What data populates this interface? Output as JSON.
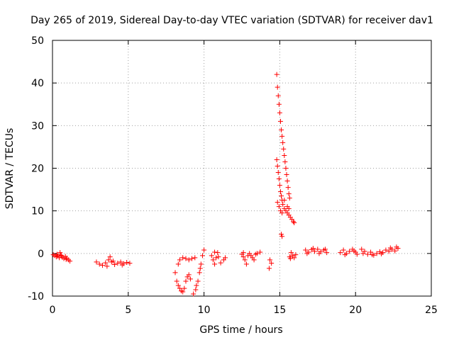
{
  "chart_data": {
    "type": "scatter",
    "title": "Day 265 of 2019, Sidereal Day-to-day VTEC variation (SDTVAR) for receiver dav1",
    "xlabel": "GPS time / hours",
    "ylabel": "SDTVAR / TECUs",
    "xlim": [
      0,
      25
    ],
    "ylim": [
      -10,
      50
    ],
    "xticks": [
      0,
      5,
      10,
      15,
      20,
      25
    ],
    "yticks": [
      -10,
      0,
      10,
      20,
      30,
      40,
      50
    ],
    "grid": true,
    "marker": "+",
    "color": "#ff0000",
    "series": [
      {
        "name": "SDTVAR",
        "points": [
          [
            0.05,
            -0.3
          ],
          [
            0.15,
            -0.5
          ],
          [
            0.25,
            -0.8
          ],
          [
            0.35,
            -0.6
          ],
          [
            0.45,
            -1.0
          ],
          [
            0.55,
            -0.4
          ],
          [
            0.65,
            -0.9
          ],
          [
            0.75,
            -1.2
          ],
          [
            0.85,
            -0.7
          ],
          [
            0.95,
            -1.1
          ],
          [
            1.05,
            -1.5
          ],
          [
            1.15,
            -1.8
          ],
          [
            0.3,
            -0.2
          ],
          [
            0.6,
            -0.5
          ],
          [
            0.9,
            -1.4
          ],
          [
            0.5,
            0.2
          ],
          [
            2.9,
            -2.0
          ],
          [
            3.1,
            -2.5
          ],
          [
            3.3,
            -2.8
          ],
          [
            3.5,
            -2.2
          ],
          [
            3.7,
            -1.5
          ],
          [
            3.8,
            -0.8
          ],
          [
            3.9,
            -2.0
          ],
          [
            4.1,
            -2.6
          ],
          [
            4.3,
            -2.3
          ],
          [
            4.5,
            -2.0
          ],
          [
            4.7,
            -2.4
          ],
          [
            4.9,
            -2.1
          ],
          [
            5.1,
            -2.3
          ],
          [
            3.6,
            -3.0
          ],
          [
            4.0,
            -1.8
          ],
          [
            4.6,
            -2.7
          ],
          [
            8.1,
            -4.5
          ],
          [
            8.2,
            -6.5
          ],
          [
            8.3,
            -7.5
          ],
          [
            8.4,
            -8.2
          ],
          [
            8.5,
            -8.8
          ],
          [
            8.6,
            -9.0
          ],
          [
            8.7,
            -8.2
          ],
          [
            8.8,
            -6.5
          ],
          [
            8.9,
            -5.5
          ],
          [
            9.0,
            -5.0
          ],
          [
            9.1,
            -6.0
          ],
          [
            8.3,
            -2.5
          ],
          [
            8.4,
            -1.5
          ],
          [
            8.6,
            -1.0
          ],
          [
            8.8,
            -1.2
          ],
          [
            9.0,
            -1.5
          ],
          [
            9.2,
            -1.2
          ],
          [
            9.4,
            -1.0
          ],
          [
            9.3,
            -9.5
          ],
          [
            9.45,
            -8.5
          ],
          [
            9.6,
            -6.5
          ],
          [
            9.7,
            -4.5
          ],
          [
            9.8,
            -2.5
          ],
          [
            9.9,
            -0.5
          ],
          [
            10.0,
            0.8
          ],
          [
            9.5,
            -7.5
          ],
          [
            9.75,
            -3.5
          ],
          [
            10.5,
            -0.5
          ],
          [
            10.6,
            -1.5
          ],
          [
            10.7,
            -2.5
          ],
          [
            10.8,
            -1.0
          ],
          [
            10.9,
            0.2
          ],
          [
            10.95,
            -0.8
          ],
          [
            11.1,
            -2.2
          ],
          [
            11.3,
            -1.5
          ],
          [
            11.4,
            -1.0
          ],
          [
            10.7,
            0.3
          ],
          [
            12.5,
            -0.2
          ],
          [
            12.6,
            -0.8
          ],
          [
            12.7,
            -1.5
          ],
          [
            12.8,
            -2.5
          ],
          [
            12.9,
            -0.5
          ],
          [
            13.0,
            0.0
          ],
          [
            13.1,
            -0.5
          ],
          [
            13.2,
            -1.0
          ],
          [
            13.3,
            -1.5
          ],
          [
            13.5,
            0.0
          ],
          [
            13.7,
            0.3
          ],
          [
            12.6,
            0.2
          ],
          [
            13.4,
            -0.2
          ],
          [
            14.3,
            -3.5
          ],
          [
            14.45,
            -2.3
          ],
          [
            14.35,
            -1.5
          ],
          [
            14.8,
            42.0
          ],
          [
            14.85,
            39.0
          ],
          [
            14.9,
            37.0
          ],
          [
            14.95,
            35.0
          ],
          [
            15.0,
            33.0
          ],
          [
            15.05,
            31.0
          ],
          [
            15.1,
            29.0
          ],
          [
            15.15,
            27.5
          ],
          [
            15.2,
            26.0
          ],
          [
            15.25,
            24.5
          ],
          [
            15.3,
            23.0
          ],
          [
            15.35,
            21.5
          ],
          [
            15.4,
            20.0
          ],
          [
            15.45,
            18.5
          ],
          [
            15.5,
            17.0
          ],
          [
            15.55,
            15.5
          ],
          [
            15.6,
            14.0
          ],
          [
            15.65,
            13.0
          ],
          [
            14.8,
            22.0
          ],
          [
            14.85,
            20.5
          ],
          [
            14.9,
            19.0
          ],
          [
            14.95,
            17.5
          ],
          [
            15.0,
            16.0
          ],
          [
            15.05,
            14.5
          ],
          [
            15.1,
            13.5
          ],
          [
            15.15,
            12.5
          ],
          [
            15.2,
            11.5
          ],
          [
            15.3,
            10.5
          ],
          [
            15.4,
            10.0
          ],
          [
            15.5,
            9.5
          ],
          [
            15.6,
            9.0
          ],
          [
            15.7,
            8.5
          ],
          [
            15.8,
            8.0
          ],
          [
            15.9,
            7.5
          ],
          [
            15.95,
            7.2
          ],
          [
            14.85,
            12.0
          ],
          [
            14.95,
            11.0
          ],
          [
            15.05,
            10.0
          ],
          [
            15.15,
            9.5
          ],
          [
            15.1,
            4.5
          ],
          [
            15.15,
            4.0
          ],
          [
            15.3,
            12.5
          ],
          [
            15.5,
            11.0
          ],
          [
            15.6,
            10.5
          ],
          [
            15.65,
            -0.8
          ],
          [
            15.75,
            0.2
          ],
          [
            15.85,
            -0.5
          ],
          [
            15.95,
            -1.0
          ],
          [
            16.05,
            -0.3
          ],
          [
            15.7,
            -1.2
          ],
          [
            16.7,
            0.8
          ],
          [
            16.9,
            0.3
          ],
          [
            17.1,
            0.9
          ],
          [
            17.3,
            0.5
          ],
          [
            17.5,
            1.0
          ],
          [
            17.7,
            0.4
          ],
          [
            17.9,
            0.8
          ],
          [
            18.1,
            0.2
          ],
          [
            16.8,
            0.0
          ],
          [
            17.2,
            1.2
          ],
          [
            17.6,
            0.0
          ],
          [
            18.0,
            1.0
          ],
          [
            19.0,
            0.2
          ],
          [
            19.2,
            0.8
          ],
          [
            19.4,
            0.0
          ],
          [
            19.6,
            0.5
          ],
          [
            19.8,
            1.0
          ],
          [
            20.0,
            0.3
          ],
          [
            20.1,
            -0.2
          ],
          [
            19.3,
            -0.3
          ],
          [
            19.9,
            0.6
          ],
          [
            20.4,
            1.0
          ],
          [
            20.6,
            0.5
          ],
          [
            20.8,
            -0.2
          ],
          [
            21.0,
            0.3
          ],
          [
            21.2,
            -0.4
          ],
          [
            21.4,
            0.0
          ],
          [
            21.6,
            0.4
          ],
          [
            21.8,
            0.2
          ],
          [
            22.0,
            0.8
          ],
          [
            22.2,
            0.5
          ],
          [
            22.4,
            1.0
          ],
          [
            22.6,
            0.6
          ],
          [
            22.8,
            1.2
          ],
          [
            20.5,
            0.0
          ],
          [
            21.1,
            -0.3
          ],
          [
            21.7,
            -0.1
          ],
          [
            22.3,
            1.3
          ],
          [
            22.7,
            1.5
          ]
        ]
      }
    ]
  }
}
